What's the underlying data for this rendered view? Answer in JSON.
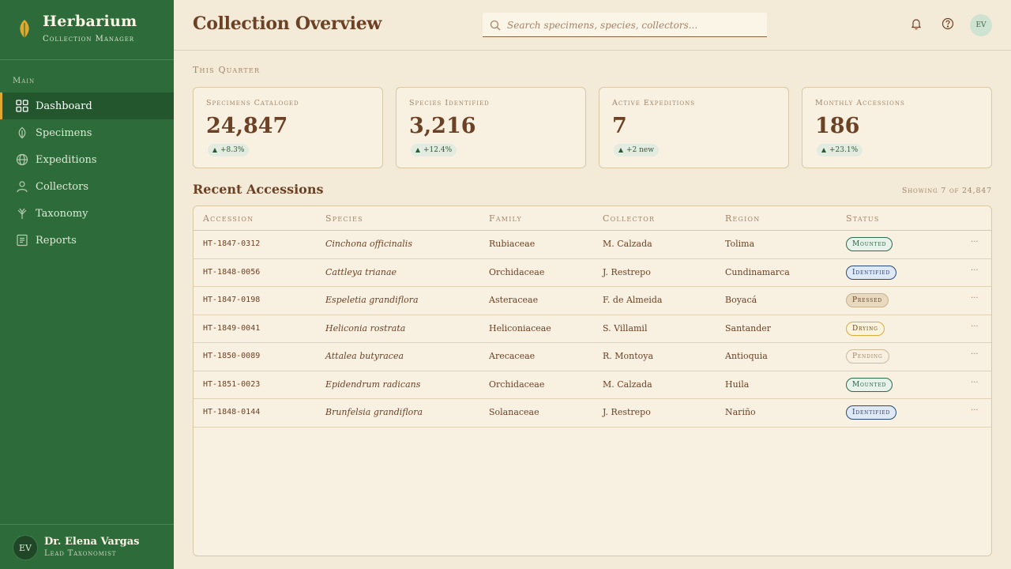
{
  "sidebar": {
    "brand_title": "Herbarium",
    "brand_subtitle": "Collection Manager",
    "section_label": "Main",
    "items": [
      {
        "label": "Dashboard",
        "icon": "grid-icon"
      },
      {
        "label": "Specimens",
        "icon": "leaf-icon"
      },
      {
        "label": "Expeditions",
        "icon": "globe-icon"
      },
      {
        "label": "Collectors",
        "icon": "person-icon"
      },
      {
        "label": "Taxonomy",
        "icon": "branch-icon"
      },
      {
        "label": "Reports",
        "icon": "document-icon"
      }
    ],
    "active_item": "Dashboard",
    "user": {
      "initials": "EV",
      "name": "Dr. Elena Vargas",
      "role": "Lead Taxonomist"
    }
  },
  "header": {
    "title": "Collection Overview",
    "search_placeholder": "Search specimens, species, collectors...",
    "avatar_initials": "EV"
  },
  "stats": {
    "section_label": "This Quarter",
    "cards": [
      {
        "label": "Specimens Cataloged",
        "value": "24,847",
        "change": "+8.3%"
      },
      {
        "label": "Species Identified",
        "value": "3,216",
        "change": "+12.4%"
      },
      {
        "label": "Active Expeditions",
        "value": "7",
        "change": "+2 new"
      },
      {
        "label": "Monthly Accessions",
        "value": "186",
        "change": "+23.1%"
      }
    ]
  },
  "recent": {
    "title": "Recent Accessions",
    "count_text": "Showing 7 of 24,847",
    "columns": [
      "Accession",
      "Species",
      "Family",
      "Collector",
      "Region",
      "Status"
    ],
    "rows": [
      {
        "accession": "HT-1847-0312",
        "species": "Cinchona officinalis",
        "family": "Rubiaceae",
        "collector": "M. Calzada",
        "region": "Tolima",
        "status": "Mounted"
      },
      {
        "accession": "HT-1848-0056",
        "species": "Cattleya trianae",
        "family": "Orchidaceae",
        "collector": "J. Restrepo",
        "region": "Cundinamarca",
        "status": "Identified"
      },
      {
        "accession": "HT-1847-0198",
        "species": "Espeletia grandiflora",
        "family": "Asteraceae",
        "collector": "F. de Almeida",
        "region": "Boyacá",
        "status": "Pressed"
      },
      {
        "accession": "HT-1849-0041",
        "species": "Heliconia rostrata",
        "family": "Heliconiaceae",
        "collector": "S. Villamil",
        "region": "Santander",
        "status": "Drying"
      },
      {
        "accession": "HT-1850-0089",
        "species": "Attalea butyracea",
        "family": "Arecaceae",
        "collector": "R. Montoya",
        "region": "Antioquia",
        "status": "Pending"
      },
      {
        "accession": "HT-1851-0023",
        "species": "Epidendrum radicans",
        "family": "Orchidaceae",
        "collector": "M. Calzada",
        "region": "Huila",
        "status": "Mounted"
      },
      {
        "accession": "HT-1848-0144",
        "species": "Brunfelsia grandiflora",
        "family": "Solanaceae",
        "collector": "J. Restrepo",
        "region": "Nariño",
        "status": "Identified"
      }
    ],
    "row_action": "···"
  },
  "colors": {
    "sidebar": "#2e6b3a",
    "accent": "#e0a82e",
    "background": "#f4ead8",
    "text": "#6b4226"
  }
}
